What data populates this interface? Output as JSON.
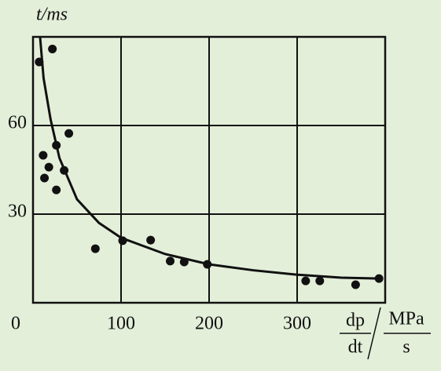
{
  "chart_data": {
    "type": "scatter",
    "y_label": "t/ms",
    "x_label": {
      "numerator": "dp",
      "denominator": "dt",
      "unit": "MPa",
      "unit_denominator": "s"
    },
    "x": [
      7,
      22,
      11.5,
      13,
      18,
      26.5,
      26.5,
      35.4,
      40.7,
      70.8,
      101.8,
      133.6,
      155.8,
      171.7,
      198,
      309.7,
      325.7,
      366.4,
      393
    ],
    "values": [
      81.5,
      85.9,
      49.9,
      42.2,
      45.9,
      53.3,
      38.2,
      44.8,
      57.3,
      18.3,
      21,
      21.2,
      14.1,
      13.8,
      13,
      7.4,
      7.4,
      6.1,
      8.2
    ],
    "fit_x": [
      8,
      12,
      20,
      30,
      50,
      75,
      100,
      150,
      200,
      250,
      300,
      350,
      393
    ],
    "fit_values": [
      90,
      76,
      62,
      49,
      35,
      27,
      22,
      16.5,
      13,
      11,
      9.5,
      8.5,
      8.2
    ],
    "color": "#111111",
    "xlim": [
      0,
      400
    ],
    "ylim": [
      0,
      90
    ],
    "xticks": [
      0,
      100,
      200,
      300
    ],
    "yticks": [
      30,
      60
    ],
    "grid": true
  }
}
